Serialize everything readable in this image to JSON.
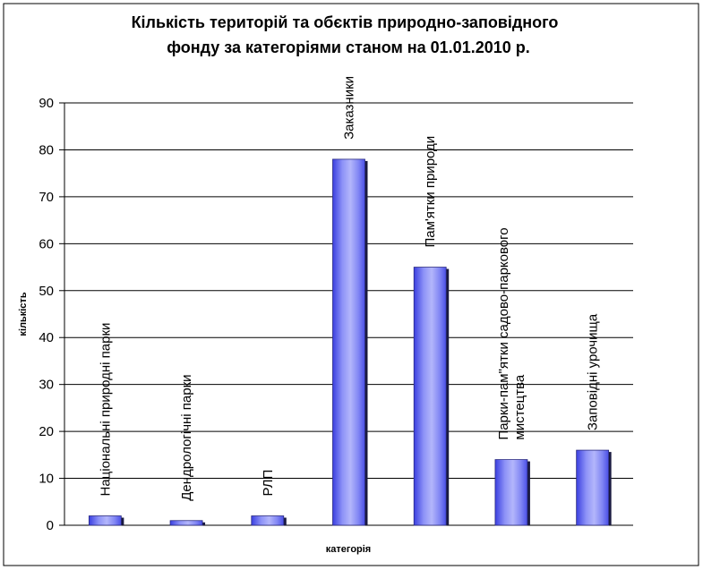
{
  "chart_data": {
    "type": "bar",
    "title_lines": [
      "Кількість територій та обєктів природно-заповідного",
      "фонду за категоріями станом на 01.01.2010 р."
    ],
    "xlabel": "категорія",
    "ylabel": "кількість",
    "ylim": [
      0,
      90
    ],
    "yticks": [
      0,
      10,
      20,
      30,
      40,
      50,
      60,
      70,
      80,
      90
    ],
    "grid": true,
    "legend": "none",
    "bar_color": "#6f74f2",
    "categories": [
      [
        "Національні природні парки"
      ],
      [
        "Дендрологічні парки"
      ],
      [
        "РЛП"
      ],
      [
        "Заказники"
      ],
      [
        "Пам'ятки природи"
      ],
      [
        "Парки-пам\"ятки садово-паркового",
        "мистецтва"
      ],
      [
        "Заповідні урочища"
      ]
    ],
    "values": [
      2,
      1,
      2,
      78,
      55,
      14,
      16
    ]
  }
}
